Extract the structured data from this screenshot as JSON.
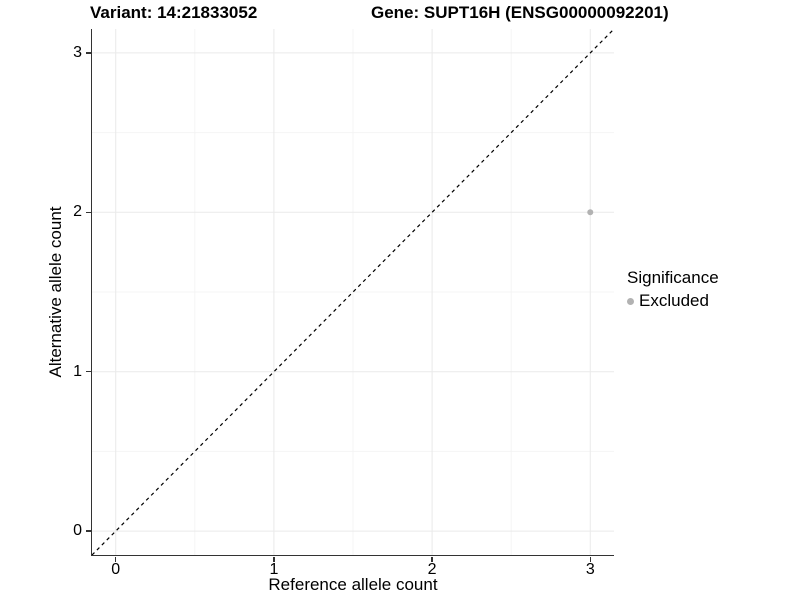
{
  "titles": {
    "variant": "Variant: 14:21833052",
    "gene": "Gene: SUPT16H (ENSG00000092201)"
  },
  "legend": {
    "title": "Significance",
    "items": [
      {
        "label": "Excluded",
        "color": "#b2b2b2"
      }
    ]
  },
  "colors": {
    "point": "#b2b2b2",
    "axis_line": "#333333",
    "grid_major": "#eaeaea",
    "grid_minor": "#f4f4f4",
    "reference_line": "#000000",
    "text": "#000000"
  },
  "chart_data": {
    "type": "scatter",
    "title": "Variant: 14:21833052   Gene: SUPT16H (ENSG00000092201)",
    "xlabel": "Reference allele count",
    "ylabel": "Alternative allele count",
    "xlim": [
      -0.15,
      3.15
    ],
    "ylim": [
      -0.15,
      3.15
    ],
    "x_ticks": [
      0,
      1,
      2,
      3
    ],
    "y_ticks": [
      0,
      1,
      2,
      3
    ],
    "x_minor_ticks": [
      0.5,
      1.5,
      2.5
    ],
    "y_minor_ticks": [
      0.5,
      1.5,
      2.5
    ],
    "grid": "major+minor",
    "legend_position": "right",
    "series": [
      {
        "name": "Excluded",
        "color": "#b2b2b2",
        "points": [
          {
            "x": 3,
            "y": 2
          }
        ]
      }
    ],
    "reference_line": {
      "type": "identity",
      "equation": "y = x",
      "style": "dashed",
      "color": "#000000"
    }
  }
}
